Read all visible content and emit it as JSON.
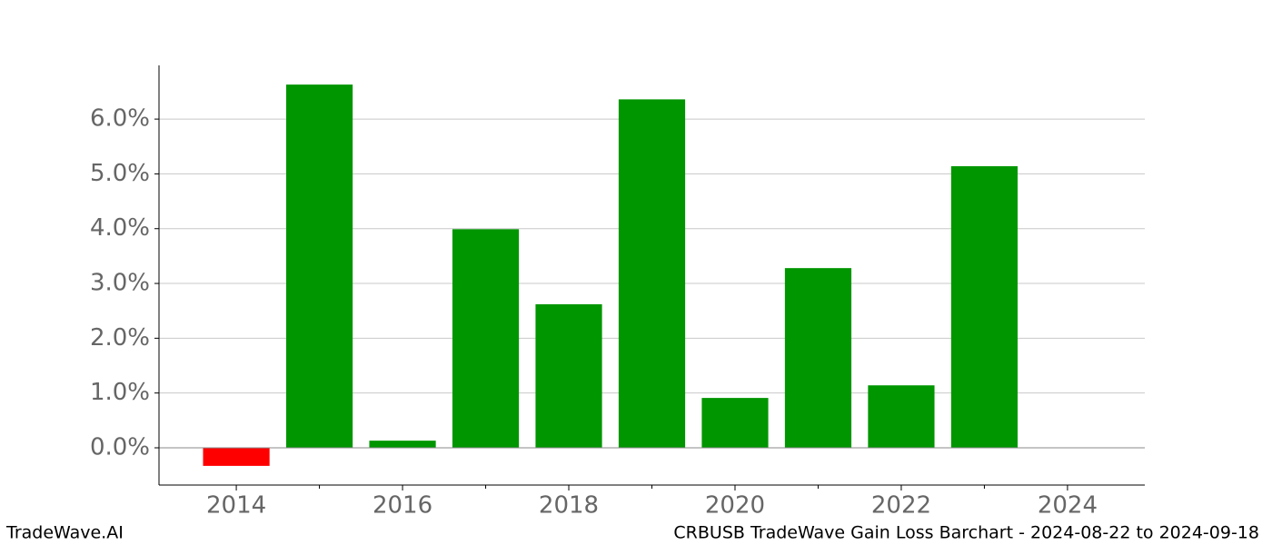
{
  "chart_data": {
    "type": "bar",
    "x": [
      2014,
      2015,
      2016,
      2017,
      2018,
      2019,
      2020,
      2021,
      2022,
      2023
    ],
    "values": [
      -0.33,
      6.63,
      0.13,
      3.99,
      2.62,
      6.36,
      0.91,
      3.28,
      1.14,
      5.14
    ],
    "positive_color": "#009600",
    "negative_color": "#ff0000",
    "xlim": [
      2013.07,
      2024.93
    ],
    "xticks": [
      2014,
      2016,
      2018,
      2020,
      2022,
      2024
    ],
    "xminorticks": [
      2015,
      2017,
      2019,
      2021,
      2023
    ],
    "ylim": [
      -0.68,
      6.98
    ],
    "yticks": [
      {
        "value": 0,
        "label": "0.0%"
      },
      {
        "value": 1,
        "label": "1.0%"
      },
      {
        "value": 2,
        "label": "2.0%"
      },
      {
        "value": 3,
        "label": "3.0%"
      },
      {
        "value": 4,
        "label": "4.0%"
      },
      {
        "value": 5,
        "label": "5.0%"
      },
      {
        "value": 6,
        "label": "6.0%"
      }
    ],
    "grid": true,
    "watermark": "TradeWave.AI",
    "footer": "CRBUSB TradeWave Gain Loss Barchart - 2024-08-22 to 2024-09-18"
  }
}
